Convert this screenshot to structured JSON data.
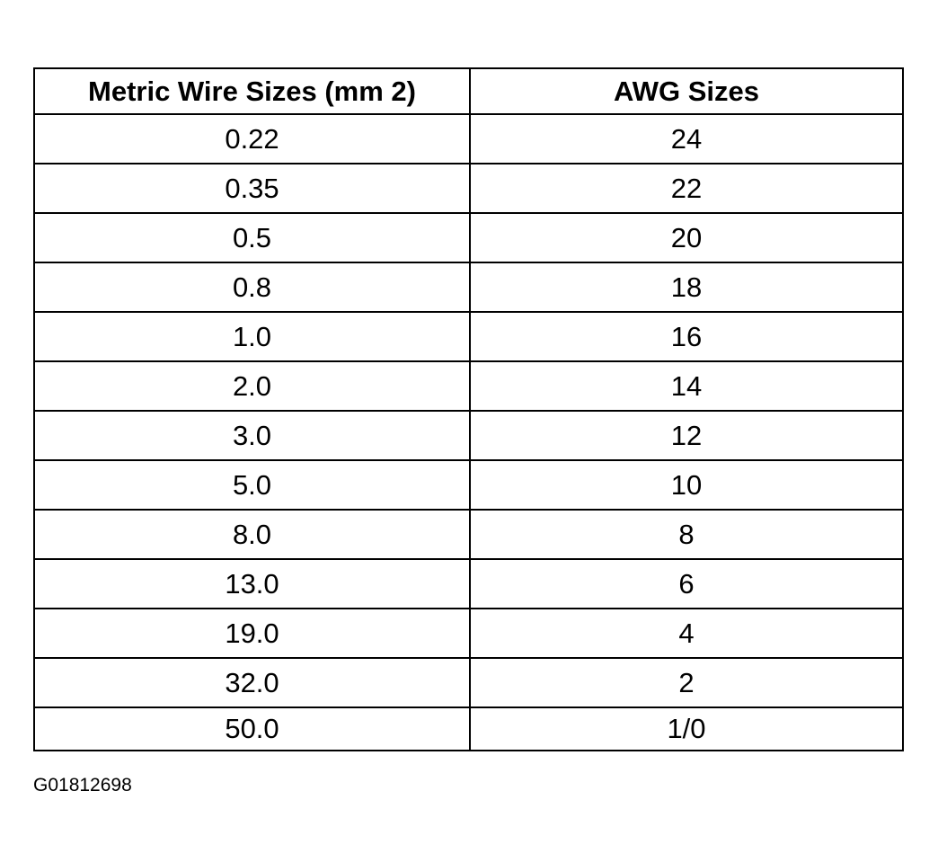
{
  "table": {
    "headers": [
      "Metric Wire Sizes (mm 2)",
      "AWG Sizes"
    ],
    "rows": [
      [
        "0.22",
        "24"
      ],
      [
        "0.35",
        "22"
      ],
      [
        "0.5",
        "20"
      ],
      [
        "0.8",
        "18"
      ],
      [
        "1.0",
        "16"
      ],
      [
        "2.0",
        "14"
      ],
      [
        "3.0",
        "12"
      ],
      [
        "5.0",
        "10"
      ],
      [
        "8.0",
        "8"
      ],
      [
        "13.0",
        "6"
      ],
      [
        "19.0",
        "4"
      ],
      [
        "32.0",
        "2"
      ],
      [
        "50.0",
        "1/0"
      ]
    ]
  },
  "figure_code": "G01812698"
}
